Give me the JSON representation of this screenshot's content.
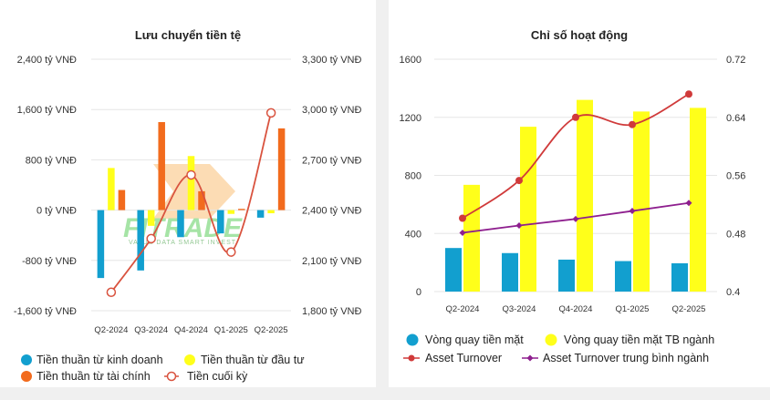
{
  "left_chart": {
    "title": "Lưu chuyển tiền tệ",
    "legend": [
      {
        "label": "Tiền thuần từ kinh doanh",
        "color": "#129fcf",
        "marker": "circle"
      },
      {
        "label": "Tiền thuần từ đầu tư",
        "color": "#ffff1a",
        "marker": "circle"
      },
      {
        "label": "Tiền thuần từ tài chính",
        "color": "#f26b1d",
        "marker": "circle"
      },
      {
        "label": "Tiền cuối kỳ",
        "color": "#d9533f",
        "marker": "ring"
      }
    ],
    "watermark": {
      "brand": "FITRADE",
      "tagline": "VALUE DATA  SMART INVEST"
    }
  },
  "right_chart": {
    "title": "Chỉ số hoạt động",
    "legend": [
      {
        "label": "Vòng quay tiền mặt",
        "color": "#129fcf",
        "marker": "circle"
      },
      {
        "label": "Vòng quay tiền mặt TB ngành",
        "color": "#ffff1a",
        "marker": "circle"
      },
      {
        "label": "Asset Turnover",
        "color": "#d03a3a",
        "marker": "line-dot"
      },
      {
        "label": "Asset Turnover trung bình ngành",
        "color": "#8e1f8e",
        "marker": "line-diamond"
      }
    ]
  },
  "chart_data": [
    {
      "type": "bar",
      "title": "Lưu chuyển tiền tệ",
      "categories": [
        "Q2-2024",
        "Q3-2024",
        "Q4-2024",
        "Q1-2025",
        "Q2-2025"
      ],
      "ylim": [
        -1600,
        2400
      ],
      "yticks": [
        -1600,
        -800,
        0,
        800,
        1600,
        2400
      ],
      "ytick_labels": [
        "-1,600 tỷ VNĐ",
        "-800 tỷ VNĐ",
        "0 tỷ VNĐ",
        "800 tỷ VNĐ",
        "1,600 tỷ VNĐ",
        "2,400 tỷ VNĐ"
      ],
      "y2lim": [
        1800,
        3300
      ],
      "y2ticks": [
        1800,
        2100,
        2400,
        2700,
        3000,
        3300
      ],
      "y2tick_labels": [
        "1,800 tỷ VNĐ",
        "2,100 tỷ VNĐ",
        "2,400 tỷ VNĐ",
        "2,700 tỷ VNĐ",
        "3,000 tỷ VNĐ",
        "3,300 tỷ VNĐ"
      ],
      "series": [
        {
          "name": "Tiền thuần từ kinh doanh",
          "axis": "left",
          "kind": "bar",
          "color": "#129fcf",
          "values": [
            -1080,
            -960,
            -430,
            -370,
            -120
          ]
        },
        {
          "name": "Tiền thuần từ đầu tư",
          "axis": "left",
          "kind": "bar",
          "color": "#ffff1a",
          "values": [
            670,
            -250,
            860,
            -60,
            -50
          ]
        },
        {
          "name": "Tiền thuần từ tài chính",
          "axis": "left",
          "kind": "bar",
          "color": "#f26b1d",
          "values": [
            320,
            1400,
            300,
            20,
            1300
          ]
        },
        {
          "name": "Tiền cuối kỳ",
          "axis": "right",
          "kind": "line",
          "color": "#d9533f",
          "values": [
            1910,
            2230,
            2610,
            2150,
            2980
          ]
        }
      ]
    },
    {
      "type": "bar",
      "title": "Chỉ số hoạt động",
      "categories": [
        "Q2-2024",
        "Q3-2024",
        "Q4-2024",
        "Q1-2025",
        "Q2-2025"
      ],
      "ylim": [
        0,
        1600
      ],
      "yticks": [
        0,
        400,
        800,
        1200,
        1600
      ],
      "ytick_labels": [
        "0",
        "400",
        "800",
        "1200",
        "1600"
      ],
      "y2lim": [
        0.4,
        0.72
      ],
      "y2ticks": [
        0.4,
        0.48,
        0.56,
        0.64,
        0.72
      ],
      "y2tick_labels": [
        "0.4",
        "0.48",
        "0.56",
        "0.64",
        "0.72"
      ],
      "series": [
        {
          "name": "Vòng quay tiền mặt",
          "axis": "left",
          "kind": "bar",
          "color": "#129fcf",
          "values": [
            300,
            265,
            220,
            210,
            195
          ]
        },
        {
          "name": "Vòng quay tiền mặt TB ngành",
          "axis": "left",
          "kind": "bar",
          "color": "#ffff1a",
          "values": [
            735,
            1135,
            1320,
            1240,
            1265
          ]
        },
        {
          "name": "Asset Turnover",
          "axis": "right",
          "kind": "line",
          "color": "#d03a3a",
          "values": [
            0.501,
            0.553,
            0.64,
            0.63,
            0.672
          ]
        },
        {
          "name": "Asset Turnover trung bình ngành",
          "axis": "right",
          "kind": "line",
          "color": "#8e1f8e",
          "values": [
            0.481,
            0.491,
            0.5,
            0.511,
            0.522
          ]
        }
      ]
    }
  ]
}
